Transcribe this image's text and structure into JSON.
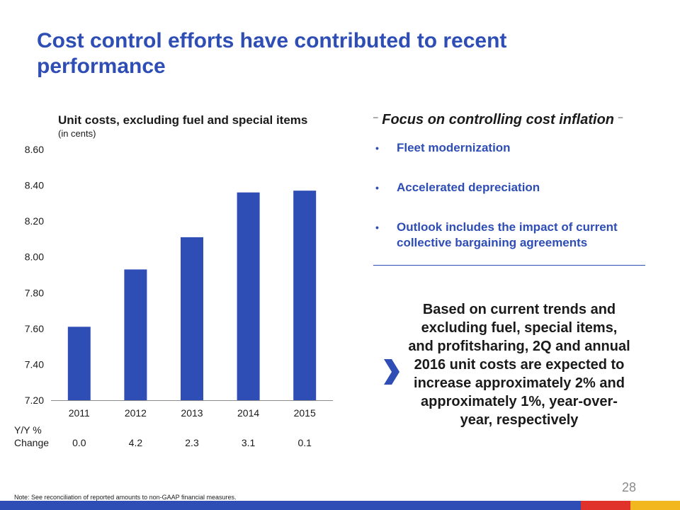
{
  "slide": {
    "title": "Cost control efforts have contributed to recent performance",
    "page_number": "28",
    "footnote": "Note: See reconciliation of reported amounts to non-GAAP financial measures."
  },
  "chart": {
    "title": "Unit costs, excluding fuel and special items",
    "subtitle": "(in cents)"
  },
  "chart_data": {
    "type": "bar",
    "title": "Unit costs, excluding fuel and special items",
    "subtitle": "(in cents)",
    "categories": [
      "2011",
      "2012",
      "2013",
      "2014",
      "2015"
    ],
    "values": [
      7.61,
      7.93,
      8.11,
      8.36,
      8.37
    ],
    "ylim": [
      7.2,
      8.6
    ],
    "yticks": [
      "7.20",
      "7.40",
      "7.60",
      "7.80",
      "8.00",
      "8.20",
      "8.40",
      "8.60"
    ],
    "bar_color": "#2e4db5",
    "grid": false,
    "yoy_label_line1": "Y/Y %",
    "yoy_label_line2": "Change",
    "yoy_change": [
      "0.0",
      "4.2",
      "2.3",
      "3.1",
      "0.1"
    ]
  },
  "focus": {
    "heading": "Focus on controlling cost inflation",
    "dash": "–",
    "bullet": "•",
    "items": [
      "Fleet modernization",
      "Accelerated depreciation",
      "Outlook includes the impact of current collective bargaining agreements"
    ]
  },
  "outlook": {
    "icon": "chevron-right-icon",
    "text": "Based on current trends and excluding fuel, special items, and profitsharing, 2Q and annual 2016 unit costs are expected to increase approximately 2% and approximately 1%, year-over-year, respectively"
  },
  "colors": {
    "accent": "#2e4db5",
    "footer": [
      "#2e4db5",
      "#e0312a",
      "#f2b71e"
    ]
  }
}
